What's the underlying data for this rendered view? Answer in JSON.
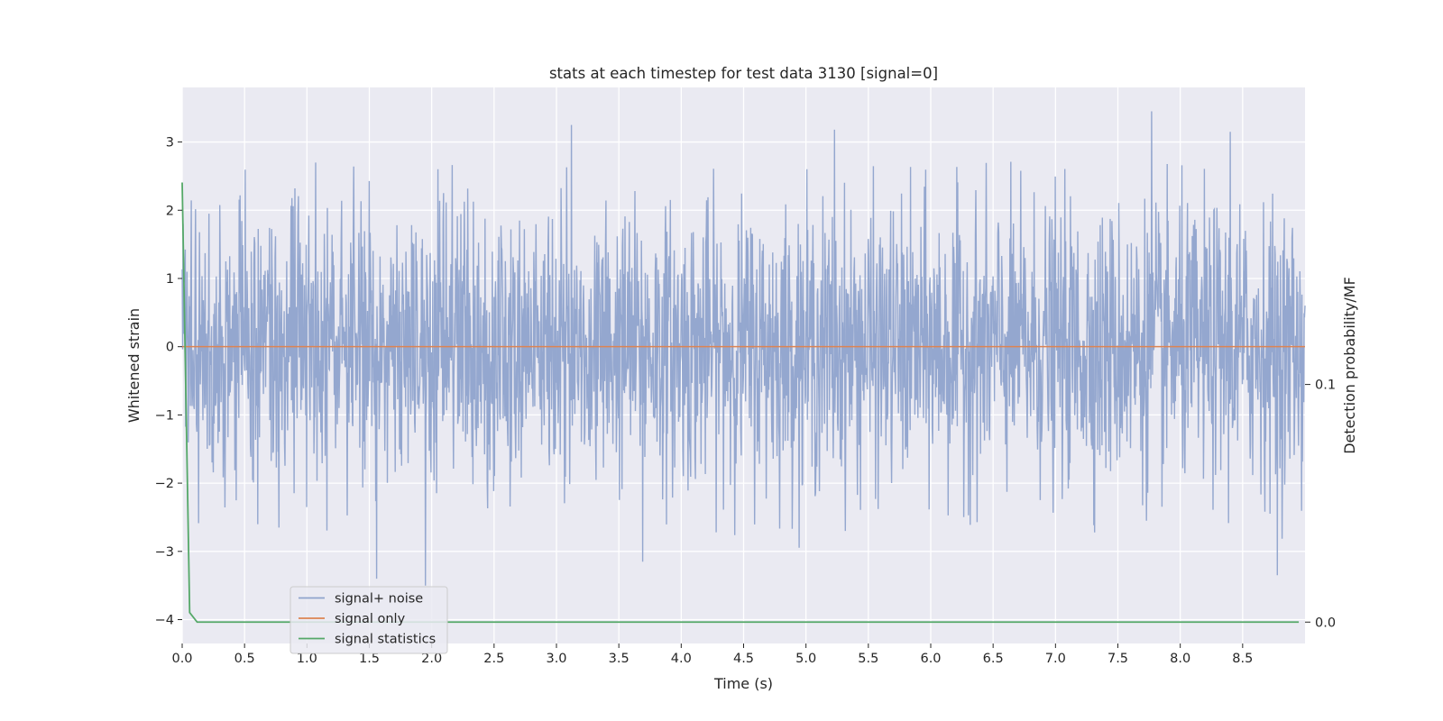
{
  "chart_data": {
    "type": "line",
    "title": "stats at each timestep for test data 3130 [signal=0]",
    "xlabel": "Time (s)",
    "ylabel": "Whitened strain",
    "ylabel_right": "Detection probability/MF",
    "xlim": [
      0.0,
      9.0
    ],
    "ylim": [
      -4.35,
      3.8
    ],
    "ylim_right": [
      -0.009,
      0.225
    ],
    "x_ticks": [
      "0.0",
      "0.5",
      "1.0",
      "1.5",
      "2.0",
      "2.5",
      "3.0",
      "3.5",
      "4.0",
      "4.5",
      "5.0",
      "5.5",
      "6.0",
      "6.5",
      "7.0",
      "7.5",
      "8.0",
      "8.5"
    ],
    "x_tick_values": [
      0.0,
      0.5,
      1.0,
      1.5,
      2.0,
      2.5,
      3.0,
      3.5,
      4.0,
      4.5,
      5.0,
      5.5,
      6.0,
      6.5,
      7.0,
      7.5,
      8.0,
      8.5
    ],
    "y_ticks": [
      "−4",
      "−3",
      "−2",
      "−1",
      "0",
      "1",
      "2",
      "3"
    ],
    "y_tick_values": [
      -4,
      -3,
      -2,
      -1,
      0,
      1,
      2,
      3
    ],
    "y_right_ticks": [
      "0.0",
      "0.1"
    ],
    "y_right_tick_values": [
      0.0,
      0.1
    ],
    "grid": true,
    "legend_position": "lower-left",
    "series": [
      {
        "name": "signal+ noise",
        "color": "#8fa3cc",
        "axis": "left",
        "description_values": "whitened noise, roughly Gaussian, std ~1, range about -3.5 to 3.5",
        "x_range": [
          0.0,
          9.0
        ],
        "n_points": 2600,
        "spikes": [
          {
            "x": 1.56,
            "y": -3.4
          },
          {
            "x": 1.95,
            "y": -3.5
          },
          {
            "x": 3.12,
            "y": 3.25
          },
          {
            "x": 3.69,
            "y": -3.15
          },
          {
            "x": 5.23,
            "y": 3.18
          },
          {
            "x": 7.77,
            "y": 3.45
          },
          {
            "x": 8.4,
            "y": 3.15
          },
          {
            "x": 8.78,
            "y": -3.35
          }
        ]
      },
      {
        "name": "signal only",
        "color": "#dd8452",
        "axis": "left",
        "x": [
          0.0,
          9.0
        ],
        "y": [
          0.0,
          0.0
        ]
      },
      {
        "name": "signal statistics",
        "color": "#55a868",
        "axis": "right",
        "x": [
          0.0,
          0.06,
          0.12,
          8.95
        ],
        "y": [
          0.185,
          0.004,
          0.0,
          0.0
        ]
      }
    ]
  }
}
